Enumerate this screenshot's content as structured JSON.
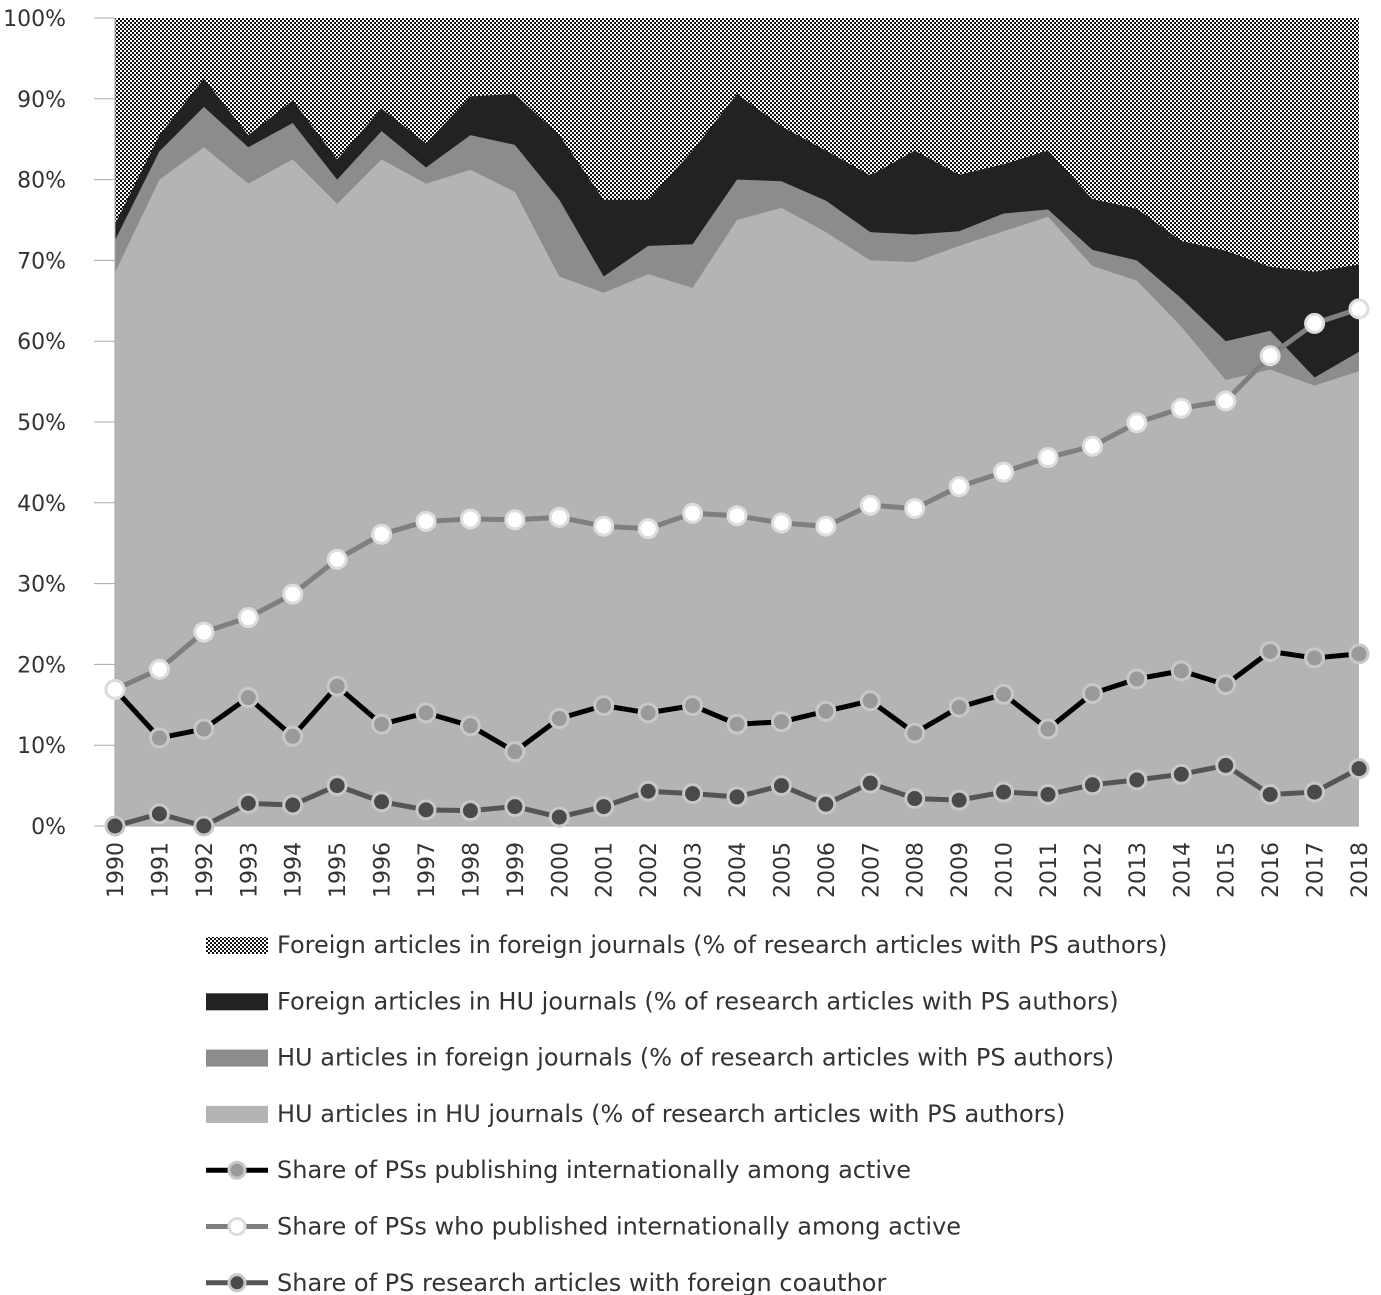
{
  "chart_data": {
    "type": "area",
    "categories": [
      "1990",
      "1991",
      "1992",
      "1993",
      "1994",
      "1995",
      "1996",
      "1997",
      "1998",
      "1999",
      "2000",
      "2001",
      "2002",
      "2003",
      "2004",
      "2005",
      "2006",
      "2007",
      "2008",
      "2009",
      "2010",
      "2011",
      "2012",
      "2013",
      "2014",
      "2015",
      "2016",
      "2017",
      "2018"
    ],
    "ylim": [
      0,
      100
    ],
    "y_ticks": [
      "0%",
      "10%",
      "20%",
      "30%",
      "40%",
      "50%",
      "60%",
      "70%",
      "80%",
      "90%",
      "100%"
    ],
    "stacked_areas": [
      {
        "name": "HU articles in HU journals (% of research articles with PS authors)",
        "color": "#b4b4b4",
        "values": [
          68.5,
          80,
          84,
          79.5,
          82.5,
          77,
          82.5,
          79.5,
          81.2,
          78.5,
          68,
          66,
          68.3,
          66.6,
          75,
          76.5,
          73.5,
          70,
          69.8,
          71.8,
          73.6,
          75.4,
          69.3,
          67.5,
          61.8,
          55.2,
          56.5,
          54.5,
          56.3
        ]
      },
      {
        "name": "HU articles in foreign journals (% of research articles with PS authors)",
        "color": "#8c8c8c",
        "values": [
          72.5,
          83.5,
          89,
          84,
          87,
          80,
          86,
          81.5,
          85.5,
          84.3,
          77.5,
          68,
          71.8,
          72,
          80,
          79.8,
          77.4,
          73.5,
          73.2,
          73.6,
          75.8,
          76.3,
          71.3,
          70,
          65.3,
          60,
          61.3,
          55.5,
          58.7
        ]
      },
      {
        "name": "Foreign articles in HU journals (% of research articles with PS authors)",
        "color": "#222222",
        "values": [
          74.5,
          85.5,
          92.5,
          85.5,
          89.8,
          82.5,
          88.8,
          84.5,
          90.3,
          90.6,
          85.5,
          77.5,
          77.5,
          83.6,
          90.6,
          86.6,
          83.6,
          80.5,
          83.6,
          80.6,
          81.9,
          83.6,
          77.6,
          76.4,
          72.4,
          71.2,
          69.2,
          68.6,
          69.5
        ]
      },
      {
        "name": "Foreign articles in foreign journals (% of research articles with PS authors)",
        "pattern": "checker",
        "values": [
          100,
          100,
          100,
          100,
          100,
          100,
          100,
          100,
          100,
          100,
          100,
          100,
          100,
          100,
          100,
          100,
          100,
          100,
          100,
          100,
          100,
          100,
          100,
          100,
          100,
          100,
          100,
          100,
          100
        ]
      }
    ],
    "series": [
      {
        "name": "Share of PSs publishing internationally among active",
        "line_color": "#000000",
        "marker_fill": "#9a9a9a",
        "values": [
          16.9,
          10.9,
          12.0,
          15.9,
          11.1,
          17.3,
          12.6,
          14.0,
          12.4,
          9.2,
          13.3,
          14.9,
          14.0,
          14.9,
          12.6,
          12.9,
          14.2,
          15.5,
          11.5,
          14.7,
          16.3,
          12.0,
          16.4,
          18.2,
          19.2,
          17.5,
          21.6,
          20.8,
          21.3
        ]
      },
      {
        "name": "Share of PSs who published internationally among active",
        "line_color": "#7f7f7f",
        "marker_fill": "#ffffff",
        "values": [
          16.9,
          19.4,
          24.0,
          25.8,
          28.7,
          33.0,
          36.1,
          37.7,
          38.0,
          37.9,
          38.2,
          37.1,
          36.8,
          38.7,
          38.4,
          37.5,
          37.1,
          39.7,
          39.3,
          42.0,
          43.8,
          45.6,
          47.0,
          49.9,
          51.7,
          52.6,
          58.2,
          62.2,
          64.0
        ]
      },
      {
        "name": "Share of PS research articles with foreign coauthor",
        "line_color": "#555555",
        "marker_fill": "#4a4a4a",
        "values": [
          0.0,
          1.5,
          0.0,
          2.8,
          2.6,
          5.0,
          3.0,
          2.0,
          1.9,
          2.4,
          1.1,
          2.4,
          4.3,
          4.0,
          3.6,
          5.0,
          2.7,
          5.3,
          3.4,
          3.2,
          4.2,
          3.9,
          5.1,
          5.7,
          6.4,
          7.5,
          3.9,
          4.2,
          7.1
        ]
      }
    ],
    "legend_order": [
      "Foreign articles in foreign journals (% of research articles with PS authors)",
      "Foreign articles in HU journals (% of research articles with PS authors)",
      "HU articles in foreign journals (% of research articles with PS authors)",
      "HU articles in HU journals (% of research articles with PS authors)",
      "Share of PSs publishing internationally among active",
      "Share of PSs who published internationally among active",
      "Share of PS research articles with foreign coauthor"
    ],
    "legend_position": "bottom"
  }
}
